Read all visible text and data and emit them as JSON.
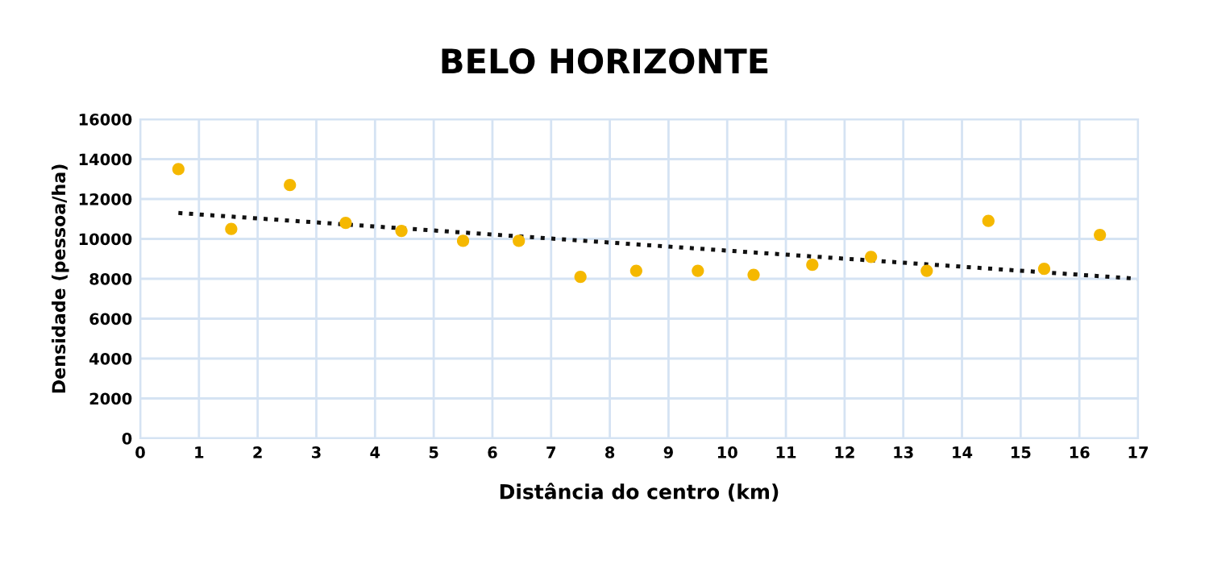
{
  "chart_data": {
    "type": "scatter",
    "title": "BELO HORIZONTE",
    "xlabel": "Distância do centro (km)",
    "ylabel": "Densidade (pessoa/ha)",
    "xlim": [
      0,
      17
    ],
    "xticks": [
      0,
      1,
      2,
      3,
      4,
      5,
      6,
      7,
      8,
      9,
      10,
      11,
      12,
      13,
      14,
      15,
      16,
      17
    ],
    "ylim": [
      0,
      16000
    ],
    "yticks": [
      0,
      2000,
      4000,
      6000,
      8000,
      10000,
      12000,
      14000,
      16000
    ],
    "grid": true,
    "legend": false,
    "series": [
      {
        "color": "#f5b800",
        "marker": "circle",
        "x": [
          0.65,
          1.55,
          2.55,
          3.5,
          4.45,
          5.5,
          6.45,
          7.5,
          8.45,
          9.5,
          10.45,
          11.45,
          12.45,
          13.4,
          14.45,
          15.4,
          16.35
        ],
        "values": [
          13500,
          10500,
          12700,
          10800,
          10400,
          9900,
          9900,
          8100,
          8400,
          8400,
          8200,
          8700,
          9100,
          8400,
          10900,
          8500,
          10200
        ]
      },
      {
        "type": "line",
        "color": "#111111",
        "line_style": "dotted",
        "marker": "none",
        "x": [
          0.65,
          17
        ],
        "values": [
          11300,
          8000
        ]
      }
    ]
  }
}
